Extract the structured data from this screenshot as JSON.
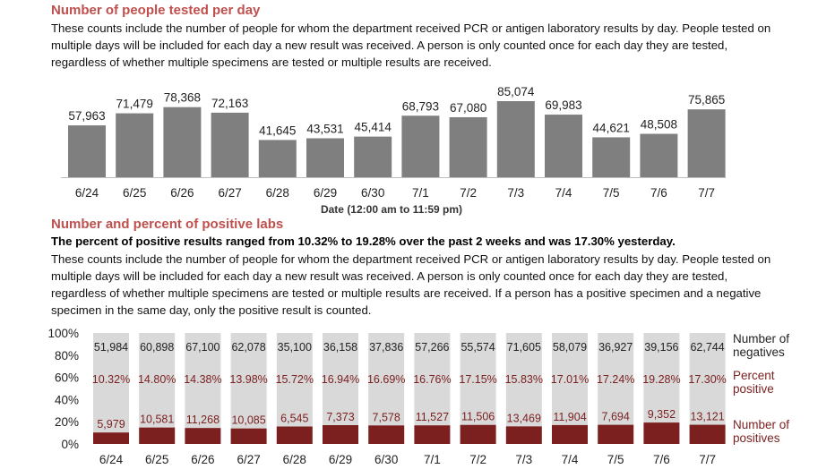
{
  "section1": {
    "title": "Number of people tested per day",
    "description": "These counts include the number of people for whom the department received PCR or antigen laboratory results by day. People tested on multiple days will be included for each day a new result was received. A person is only counted once for each day they are tested, regardless of whether multiple specimens are tested or multiple results are received."
  },
  "section2": {
    "title": "Number and percent of positive labs",
    "summary": "The percent of positive results ranged from 10.32% to 19.28% over the past 2 weeks and was 17.30% yesterday.",
    "description": "These counts include the number of people for whom the department received PCR or antigen laboratory results by day. People tested on multiple days will be included for each day a new result was received. A person is only counted once for each day they are tested, regardless of whether multiple specimens are tested or multiple results are received. If a person has a positive specimen and a negative specimen in the same day, only the positive result is counted.",
    "legend_negatives": "Number of negatives",
    "legend_percent": "Percent positive",
    "legend_positives": "Number of positives"
  },
  "chart_data": [
    {
      "type": "bar",
      "categories": [
        "6/24",
        "6/25",
        "6/26",
        "6/27",
        "6/28",
        "6/29",
        "6/30",
        "7/1",
        "7/2",
        "7/3",
        "7/4",
        "7/5",
        "7/6",
        "7/7"
      ],
      "values": [
        57963,
        71479,
        78368,
        72163,
        41645,
        43531,
        45414,
        68793,
        67080,
        85074,
        69983,
        44621,
        48508,
        75865
      ],
      "value_labels": [
        "57,963",
        "71,479",
        "78,368",
        "72,163",
        "41,645",
        "43,531",
        "45,414",
        "68,793",
        "67,080",
        "85,074",
        "69,983",
        "44,621",
        "48,508",
        "75,865"
      ],
      "xlabel": "Date (12:00 am to 11:59 pm)",
      "ylabel": "",
      "bar_color": "#7f7f7f",
      "grid": false
    },
    {
      "type": "bar",
      "stacked": true,
      "percent": true,
      "categories": [
        "6/24",
        "6/25",
        "6/26",
        "6/27",
        "6/28",
        "6/29",
        "6/30",
        "7/1",
        "7/2",
        "7/3",
        "7/4",
        "7/5",
        "7/6",
        "7/7"
      ],
      "yticks": [
        "0%",
        "20%",
        "40%",
        "60%",
        "80%",
        "100%"
      ],
      "series": [
        {
          "name": "Number of positives",
          "color": "#7b1f1f",
          "values": [
            5979,
            10581,
            11268,
            10085,
            6545,
            7373,
            7578,
            11527,
            11506,
            13469,
            11904,
            7694,
            9352,
            13121
          ],
          "labels": [
            "5,979",
            "10,581",
            "11,268",
            "10,085",
            "6,545",
            "7,373",
            "7,578",
            "11,527",
            "11,506",
            "13,469",
            "11,904",
            "7,694",
            "9,352",
            "13,121"
          ]
        },
        {
          "name": "Number of negatives",
          "color": "#d9d9d9",
          "values": [
            51984,
            60898,
            67100,
            62078,
            35100,
            36158,
            37836,
            57266,
            55574,
            71605,
            58079,
            36927,
            39156,
            62744
          ],
          "labels": [
            "51,984",
            "60,898",
            "67,100",
            "62,078",
            "35,100",
            "36,158",
            "37,836",
            "57,266",
            "55,574",
            "71,605",
            "58,079",
            "36,927",
            "39,156",
            "62,744"
          ]
        }
      ],
      "percent_positive": [
        10.32,
        14.8,
        14.38,
        13.98,
        15.72,
        16.94,
        16.69,
        16.76,
        17.15,
        15.83,
        17.01,
        17.24,
        19.28,
        17.3
      ],
      "percent_positive_labels": [
        "10.32%",
        "14.80%",
        "14.38%",
        "13.98%",
        "15.72%",
        "16.94%",
        "16.69%",
        "16.76%",
        "17.15%",
        "15.83%",
        "17.01%",
        "17.24%",
        "19.28%",
        "17.30%"
      ],
      "colors": {
        "positive": "#7b1f1f",
        "percent_text": "#7b1f1f",
        "negative": "#d9d9d9"
      }
    }
  ]
}
